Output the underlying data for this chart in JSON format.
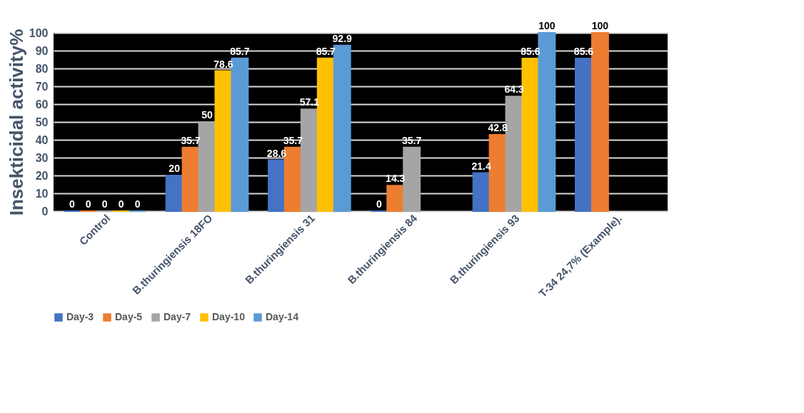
{
  "chart_data": {
    "type": "bar",
    "ylabel": "Insekticidal activity%",
    "categories": [
      "Control",
      "B.thuringiensis 18FO",
      "B.thuringiensis 31",
      "B.thuringiensis 84",
      "B.thuringiensis 93",
      "T-34 24,7% (Example)."
    ],
    "series": [
      {
        "name": "Day-3",
        "color": "#4472c4",
        "values": [
          0,
          20,
          28.6,
          0,
          21.4,
          85.6
        ]
      },
      {
        "name": "Day-5",
        "color": "#ed7d31",
        "values": [
          0,
          35.7,
          35.7,
          14.3,
          42.8,
          100
        ]
      },
      {
        "name": "Day-7",
        "color": "#a5a5a5",
        "values": [
          0,
          50,
          57.1,
          35.7,
          64.3,
          null
        ]
      },
      {
        "name": "Day-10",
        "color": "#ffc000",
        "values": [
          0,
          78.6,
          85.7,
          null,
          85.6,
          null
        ]
      },
      {
        "name": "Day-14",
        "color": "#5b9bd5",
        "values": [
          0,
          85.7,
          92.9,
          null,
          100,
          null
        ]
      }
    ],
    "ylim": [
      0,
      100
    ],
    "yticks": [
      0,
      10,
      20,
      30,
      40,
      50,
      60,
      70,
      80,
      90,
      100
    ],
    "grid": "y",
    "legend": "bottom",
    "data_labels": true
  }
}
